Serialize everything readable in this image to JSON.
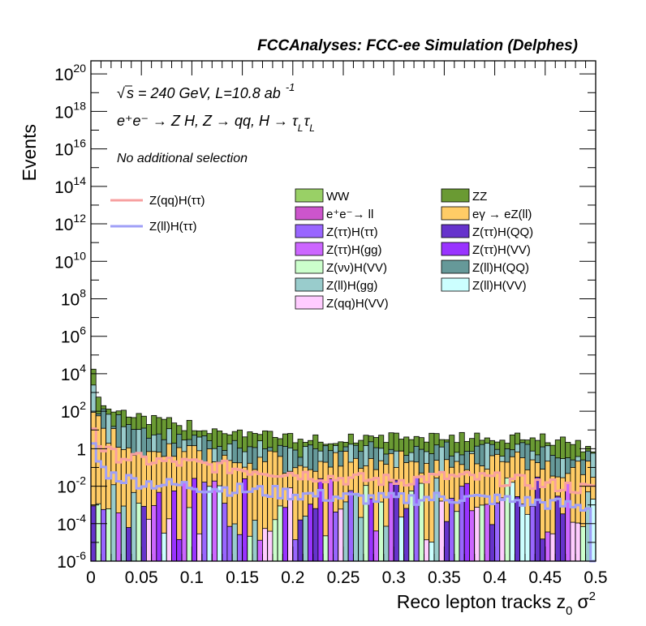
{
  "chart_data": {
    "type": "bar",
    "title": "FCCAnalyses: FCC-ee Simulation (Delphes)",
    "xlabel": "Reco lepton tracks z",
    "xlabel_sub": "0",
    "xlabel_tail": "σ",
    "xlabel_sup": "2",
    "ylabel": "Events",
    "xlim": [
      0,
      0.5
    ],
    "ylim_log10": [
      -6,
      20.7
    ],
    "y_scale": "log",
    "x_ticks": [
      "0",
      "0.05",
      "0.1",
      "0.15",
      "0.2",
      "0.25",
      "0.3",
      "0.35",
      "0.4",
      "0.45",
      "0.5"
    ],
    "y_tick_exponents": [
      "-6",
      "-4",
      "-2",
      "0",
      "2",
      "4",
      "6",
      "8",
      "10",
      "12",
      "14",
      "16",
      "18",
      "20"
    ],
    "y_tick_one": "1",
    "y_tick_base": "10",
    "annotations": {
      "sqrt_symbol": "√",
      "energy": "s = 240 GeV, L=10.8 ab",
      "energy_sup": "-1",
      "process": "e⁺e⁻ → Z H, Z → qq, H → τ",
      "tau1_sub": "L",
      "tau2": "τ",
      "tau2_sub": "L",
      "selection": "No additional selection"
    },
    "legend_lines": [
      {
        "label": "Z(qq)H(ττ)",
        "color": "#f7a0a0"
      },
      {
        "label": "Z(ll)H(ττ)",
        "color": "#9f9ff7"
      }
    ],
    "legend_fills": [
      {
        "label": "WW",
        "color": "#99d066"
      },
      {
        "label": "ZZ",
        "color": "#6a9a33"
      },
      {
        "label": "e⁺e⁻→ ll",
        "color": "#cc55cc"
      },
      {
        "label": "eγ → eZ(ll)",
        "color": "#ffcc66"
      },
      {
        "label": "Z(ττ)H(ττ)",
        "color": "#9966ff"
      },
      {
        "label": "Z(ττ)H(QQ)",
        "color": "#6633cc"
      },
      {
        "label": "Z(ττ)H(gg)",
        "color": "#cc66ff"
      },
      {
        "label": "Z(ττ)H(VV)",
        "color": "#9933ff"
      },
      {
        "label": "Z(νν)H(VV)",
        "color": "#ccffcc"
      },
      {
        "label": "Z(ll)H(QQ)",
        "color": "#669999"
      },
      {
        "label": "Z(ll)H(gg)",
        "color": "#99cccc"
      },
      {
        "label": "Z(ll)H(VV)",
        "color": "#ccffff"
      },
      {
        "label": "Z(qq)H(VV)",
        "color": "#ffccff"
      }
    ],
    "stack_envelope_log10": {
      "x": [
        0.0,
        0.005,
        0.01,
        0.02,
        0.05,
        0.1,
        0.15,
        0.2,
        0.25,
        0.3,
        0.35,
        0.4,
        0.45,
        0.5
      ],
      "top": [
        5.5,
        3.0,
        2.5,
        2.2,
        1.6,
        1.2,
        0.9,
        0.5,
        0.5,
        0.6,
        0.6,
        0.6,
        0.5,
        0.0
      ],
      "zz_ll": [
        4.3,
        2.4,
        2.0,
        1.6,
        1.0,
        0.5,
        0.2,
        -0.1,
        0.0,
        0.0,
        0.0,
        0.0,
        0.0,
        -0.4
      ],
      "egamma": [
        3.2,
        1.6,
        1.0,
        0.6,
        0.0,
        -0.3,
        -0.6,
        -0.8,
        -0.6,
        -0.7,
        -0.7,
        -0.6,
        -0.8,
        -1.3
      ]
    },
    "line_series_log10": {
      "Z(qq)H(ττ)": {
        "x": [
          0.0,
          0.005,
          0.01,
          0.02,
          0.05,
          0.1,
          0.15,
          0.2,
          0.25,
          0.3,
          0.35,
          0.4,
          0.45,
          0.5
        ],
        "y": [
          1.8,
          0.5,
          0.1,
          -0.3,
          -0.6,
          -0.8,
          -1.1,
          -1.3,
          -1.6,
          -1.7,
          -1.5,
          -1.6,
          -1.9,
          -2.2
        ]
      },
      "Z(ll)H(ττ)": {
        "x": [
          0.0,
          0.005,
          0.01,
          0.02,
          0.05,
          0.1,
          0.15,
          0.2,
          0.25,
          0.3,
          0.35,
          0.4,
          0.45,
          0.5
        ],
        "y": [
          1.0,
          -0.4,
          -1.0,
          -1.4,
          -1.8,
          -2.0,
          -2.2,
          -2.4,
          -2.6,
          -2.7,
          -2.6,
          -2.7,
          -2.9,
          -3.2
        ]
      }
    }
  }
}
